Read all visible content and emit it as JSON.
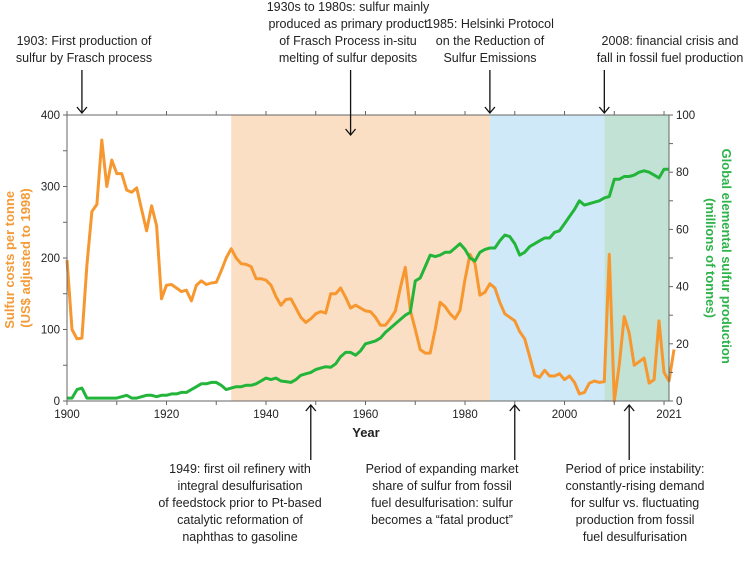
{
  "chart_data": {
    "type": "line",
    "xlabel": "Year",
    "ylabel": "Sulfur costs per tonne (US$ adjusted to 1998)",
    "ylabel_lines": [
      "Sulfur costs per tonne",
      "(US$ adjusted to 1998)"
    ],
    "y2label_lines": [
      "Global elemental sulfur production",
      "(millions of tonnes)"
    ],
    "xlim": [
      1900,
      2021
    ],
    "ylim": [
      0,
      400
    ],
    "y2lim": [
      0,
      100
    ],
    "xticks": [
      1900,
      1920,
      1940,
      1960,
      1980,
      2000,
      2021
    ],
    "yticks": [
      0,
      100,
      200,
      300,
      400
    ],
    "y2ticks": [
      0,
      20,
      40,
      60,
      80,
      100
    ],
    "grid": false,
    "shaded_periods": [
      {
        "from": 1933,
        "to": 1985,
        "color": "#fbdfc4"
      },
      {
        "from": 1985,
        "to": 2008,
        "color": "#cfe9f8"
      },
      {
        "from": 2008,
        "to": 2021,
        "color": "#c2e2d6"
      }
    ],
    "series": [
      {
        "axis": "left",
        "color": "#f7972f",
        "start_year": 1900,
        "values": [
          197,
          100,
          87,
          88,
          190,
          265,
          275,
          365,
          300,
          337,
          318,
          318,
          295,
          292,
          298,
          268,
          238,
          273,
          245,
          143,
          162,
          163,
          158,
          153,
          155,
          140,
          162,
          168,
          163,
          165,
          166,
          182,
          200,
          213,
          200,
          192,
          191,
          188,
          171,
          171,
          169,
          162,
          146,
          134,
          142,
          143,
          130,
          117,
          110,
          115,
          122,
          125,
          123,
          150,
          150,
          158,
          145,
          130,
          134,
          130,
          126,
          125,
          117,
          106,
          106,
          115,
          126,
          158,
          187,
          127,
          100,
          72,
          67,
          67,
          100,
          138,
          132,
          122,
          115,
          127,
          170,
          205,
          192,
          148,
          152,
          164,
          158,
          138,
          122,
          117,
          112,
          97,
          87,
          62,
          36,
          33,
          43,
          35,
          35,
          38,
          30,
          35,
          26,
          10,
          12,
          25,
          28,
          26,
          27,
          205,
          0,
          50,
          118,
          95,
          50,
          55,
          60,
          25,
          30,
          112,
          40,
          28,
          72
        ]
      },
      {
        "axis": "right",
        "color": "#22b53a",
        "start_year": 1900,
        "values": [
          1,
          1,
          4,
          4.5,
          1,
          1,
          1,
          1,
          1,
          1,
          1,
          1.5,
          2,
          1,
          1,
          1.5,
          2,
          2,
          1.5,
          2,
          2,
          2.5,
          2.5,
          3,
          3,
          4,
          5,
          6,
          6,
          6.5,
          6.5,
          5.5,
          4,
          4.5,
          5,
          5,
          5.5,
          5.5,
          6,
          7,
          8,
          7.5,
          8,
          7,
          6.8,
          6.5,
          7.5,
          9,
          9.5,
          10,
          11,
          11.5,
          12,
          11.8,
          13,
          15.5,
          17,
          17,
          16,
          17.5,
          20,
          20.5,
          21,
          22,
          24,
          25.5,
          27,
          28.5,
          30,
          31,
          42,
          43,
          47,
          51,
          50.5,
          51,
          52,
          52,
          53.5,
          55,
          53,
          50,
          49,
          52,
          53,
          53.5,
          53.5,
          56,
          58,
          57.5,
          55,
          51,
          52,
          54,
          55,
          56,
          57,
          57,
          59,
          59.5,
          62,
          64.5,
          67,
          70,
          68.5,
          69,
          69.5,
          70,
          71,
          71.5,
          77.5,
          77.5,
          78.5,
          78.5,
          79,
          80,
          80.5,
          80,
          79,
          78,
          81,
          81
        ]
      }
    ],
    "annotations_top": [
      {
        "year": 1903,
        "lines": [
          "1903: First production of",
          "sulfur by Frasch process"
        ]
      },
      {
        "year": 1957,
        "lines": [
          "1930s to 1980s: sulfur mainly",
          "produced as primary product",
          "of Frasch Process in-situ",
          "melting of sulfur deposits"
        ]
      },
      {
        "year": 1985,
        "lines": [
          "1985: Helsinki Protocol",
          "on the Reduction of",
          "Sulfur Emissions"
        ]
      },
      {
        "year": 2008,
        "lines": [
          "2008: financial crisis and",
          "fall in fossil fuel production"
        ]
      }
    ],
    "annotations_bottom": [
      {
        "year": 1949,
        "lines": [
          "1949: first oil refinery with",
          "integral desulfurisation",
          "of feedstock prior to Pt-based",
          "catalytic reformation of",
          "naphthas to gasoline"
        ]
      },
      {
        "year": 1990,
        "lines": [
          "Period of expanding market",
          "share of sulfur from fossil",
          "fuel desulfurisation: sulfur",
          "becomes a “fatal product”"
        ]
      },
      {
        "year": 2013,
        "lines": [
          "Period of price instability:",
          "constantly-rising demand",
          "for sulfur vs. fluctuating",
          "production from fossil",
          "fuel desulfurisation"
        ]
      }
    ]
  }
}
